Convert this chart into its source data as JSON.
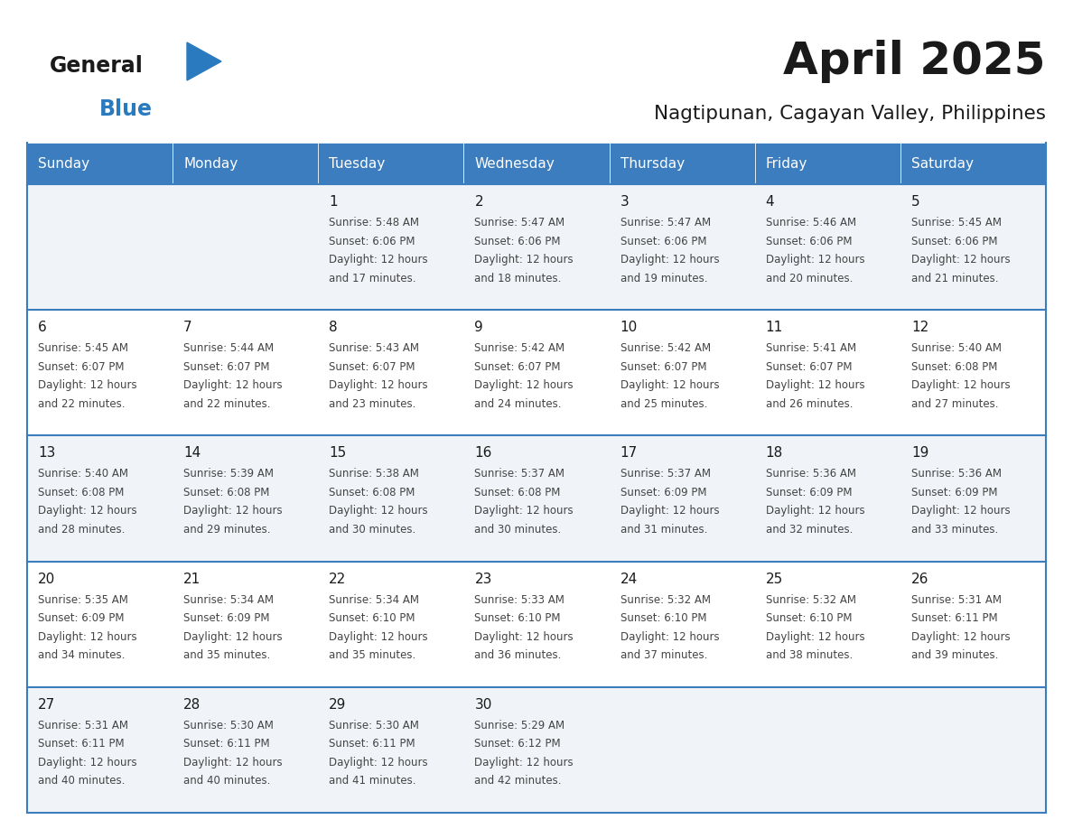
{
  "title": "April 2025",
  "subtitle": "Nagtipunan, Cagayan Valley, Philippines",
  "days_of_week": [
    "Sunday",
    "Monday",
    "Tuesday",
    "Wednesday",
    "Thursday",
    "Friday",
    "Saturday"
  ],
  "header_bg_color": "#3b7dbf",
  "header_text_color": "#ffffff",
  "row_bg_color_odd": "#f0f4f8",
  "row_bg_color_even": "#ffffff",
  "cell_border_color": "#3b7dbf",
  "title_color": "#1a1a1a",
  "subtitle_color": "#1a1a1a",
  "day_number_color": "#1a1a1a",
  "cell_text_color": "#444444",
  "logo_general_color": "#1a1a1a",
  "logo_blue_color": "#2a7abf",
  "logo_triangle_color": "#2a7abf",
  "calendar_data": [
    [
      null,
      null,
      {
        "day": 1,
        "sunrise": "5:48 AM",
        "sunset": "6:06 PM",
        "daylight_hours": 12,
        "daylight_minutes": 17
      },
      {
        "day": 2,
        "sunrise": "5:47 AM",
        "sunset": "6:06 PM",
        "daylight_hours": 12,
        "daylight_minutes": 18
      },
      {
        "day": 3,
        "sunrise": "5:47 AM",
        "sunset": "6:06 PM",
        "daylight_hours": 12,
        "daylight_minutes": 19
      },
      {
        "day": 4,
        "sunrise": "5:46 AM",
        "sunset": "6:06 PM",
        "daylight_hours": 12,
        "daylight_minutes": 20
      },
      {
        "day": 5,
        "sunrise": "5:45 AM",
        "sunset": "6:06 PM",
        "daylight_hours": 12,
        "daylight_minutes": 21
      }
    ],
    [
      {
        "day": 6,
        "sunrise": "5:45 AM",
        "sunset": "6:07 PM",
        "daylight_hours": 12,
        "daylight_minutes": 22
      },
      {
        "day": 7,
        "sunrise": "5:44 AM",
        "sunset": "6:07 PM",
        "daylight_hours": 12,
        "daylight_minutes": 22
      },
      {
        "day": 8,
        "sunrise": "5:43 AM",
        "sunset": "6:07 PM",
        "daylight_hours": 12,
        "daylight_minutes": 23
      },
      {
        "day": 9,
        "sunrise": "5:42 AM",
        "sunset": "6:07 PM",
        "daylight_hours": 12,
        "daylight_minutes": 24
      },
      {
        "day": 10,
        "sunrise": "5:42 AM",
        "sunset": "6:07 PM",
        "daylight_hours": 12,
        "daylight_minutes": 25
      },
      {
        "day": 11,
        "sunrise": "5:41 AM",
        "sunset": "6:07 PM",
        "daylight_hours": 12,
        "daylight_minutes": 26
      },
      {
        "day": 12,
        "sunrise": "5:40 AM",
        "sunset": "6:08 PM",
        "daylight_hours": 12,
        "daylight_minutes": 27
      }
    ],
    [
      {
        "day": 13,
        "sunrise": "5:40 AM",
        "sunset": "6:08 PM",
        "daylight_hours": 12,
        "daylight_minutes": 28
      },
      {
        "day": 14,
        "sunrise": "5:39 AM",
        "sunset": "6:08 PM",
        "daylight_hours": 12,
        "daylight_minutes": 29
      },
      {
        "day": 15,
        "sunrise": "5:38 AM",
        "sunset": "6:08 PM",
        "daylight_hours": 12,
        "daylight_minutes": 30
      },
      {
        "day": 16,
        "sunrise": "5:37 AM",
        "sunset": "6:08 PM",
        "daylight_hours": 12,
        "daylight_minutes": 30
      },
      {
        "day": 17,
        "sunrise": "5:37 AM",
        "sunset": "6:09 PM",
        "daylight_hours": 12,
        "daylight_minutes": 31
      },
      {
        "day": 18,
        "sunrise": "5:36 AM",
        "sunset": "6:09 PM",
        "daylight_hours": 12,
        "daylight_minutes": 32
      },
      {
        "day": 19,
        "sunrise": "5:36 AM",
        "sunset": "6:09 PM",
        "daylight_hours": 12,
        "daylight_minutes": 33
      }
    ],
    [
      {
        "day": 20,
        "sunrise": "5:35 AM",
        "sunset": "6:09 PM",
        "daylight_hours": 12,
        "daylight_minutes": 34
      },
      {
        "day": 21,
        "sunrise": "5:34 AM",
        "sunset": "6:09 PM",
        "daylight_hours": 12,
        "daylight_minutes": 35
      },
      {
        "day": 22,
        "sunrise": "5:34 AM",
        "sunset": "6:10 PM",
        "daylight_hours": 12,
        "daylight_minutes": 35
      },
      {
        "day": 23,
        "sunrise": "5:33 AM",
        "sunset": "6:10 PM",
        "daylight_hours": 12,
        "daylight_minutes": 36
      },
      {
        "day": 24,
        "sunrise": "5:32 AM",
        "sunset": "6:10 PM",
        "daylight_hours": 12,
        "daylight_minutes": 37
      },
      {
        "day": 25,
        "sunrise": "5:32 AM",
        "sunset": "6:10 PM",
        "daylight_hours": 12,
        "daylight_minutes": 38
      },
      {
        "day": 26,
        "sunrise": "5:31 AM",
        "sunset": "6:11 PM",
        "daylight_hours": 12,
        "daylight_minutes": 39
      }
    ],
    [
      {
        "day": 27,
        "sunrise": "5:31 AM",
        "sunset": "6:11 PM",
        "daylight_hours": 12,
        "daylight_minutes": 40
      },
      {
        "day": 28,
        "sunrise": "5:30 AM",
        "sunset": "6:11 PM",
        "daylight_hours": 12,
        "daylight_minutes": 40
      },
      {
        "day": 29,
        "sunrise": "5:30 AM",
        "sunset": "6:11 PM",
        "daylight_hours": 12,
        "daylight_minutes": 41
      },
      {
        "day": 30,
        "sunrise": "5:29 AM",
        "sunset": "6:12 PM",
        "daylight_hours": 12,
        "daylight_minutes": 42
      },
      null,
      null,
      null
    ]
  ]
}
